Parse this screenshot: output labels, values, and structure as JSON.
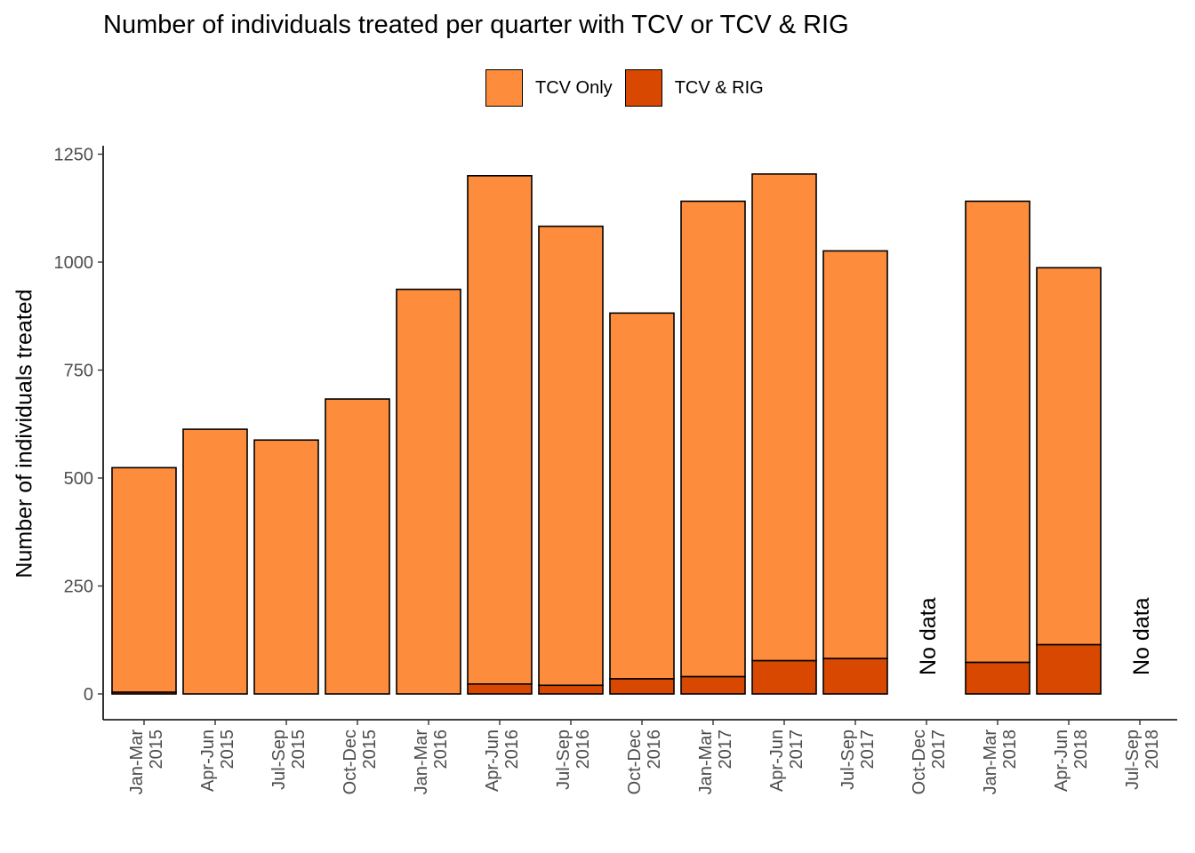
{
  "chart_data": {
    "type": "bar",
    "stacked": true,
    "title": "Number of individuals treated per quarter with TCV or TCV & RIG",
    "xlabel": "",
    "ylabel": "Number of individuals treated",
    "ylim": [
      0,
      1250
    ],
    "yticks": [
      0,
      250,
      500,
      750,
      1000,
      1250
    ],
    "legend_position": "top",
    "grid": false,
    "categories": [
      [
        "Jan-Mar",
        "2015"
      ],
      [
        "Apr-Jun",
        "2015"
      ],
      [
        "Jul-Sep",
        "2015"
      ],
      [
        "Oct-Dec",
        "2015"
      ],
      [
        "Jan-Mar",
        "2016"
      ],
      [
        "Apr-Jun",
        "2016"
      ],
      [
        "Jul-Sep",
        "2016"
      ],
      [
        "Oct-Dec",
        "2016"
      ],
      [
        "Jan-Mar",
        "2017"
      ],
      [
        "Apr-Jun",
        "2017"
      ],
      [
        "Jul-Sep",
        "2017"
      ],
      [
        "Oct-Dec",
        "2017"
      ],
      [
        "Jan-Mar",
        "2018"
      ],
      [
        "Apr-Jun",
        "2018"
      ],
      [
        "Jul-Sep",
        "2018"
      ]
    ],
    "series": [
      {
        "name": "TCV & RIG",
        "color": "#D94801",
        "values": [
          4,
          0,
          0,
          0,
          0,
          23,
          20,
          35,
          40,
          77,
          82,
          0,
          73,
          114,
          0
        ]
      },
      {
        "name": "TCV Only",
        "color": "#FD8D3C",
        "values": [
          520,
          613,
          588,
          683,
          937,
          1177,
          1063,
          847,
          1101,
          1127,
          944,
          0,
          1068,
          873,
          0
        ]
      }
    ],
    "annotations": [
      {
        "category_index": 11,
        "text": "No data"
      },
      {
        "category_index": 14,
        "text": "No data"
      }
    ]
  }
}
